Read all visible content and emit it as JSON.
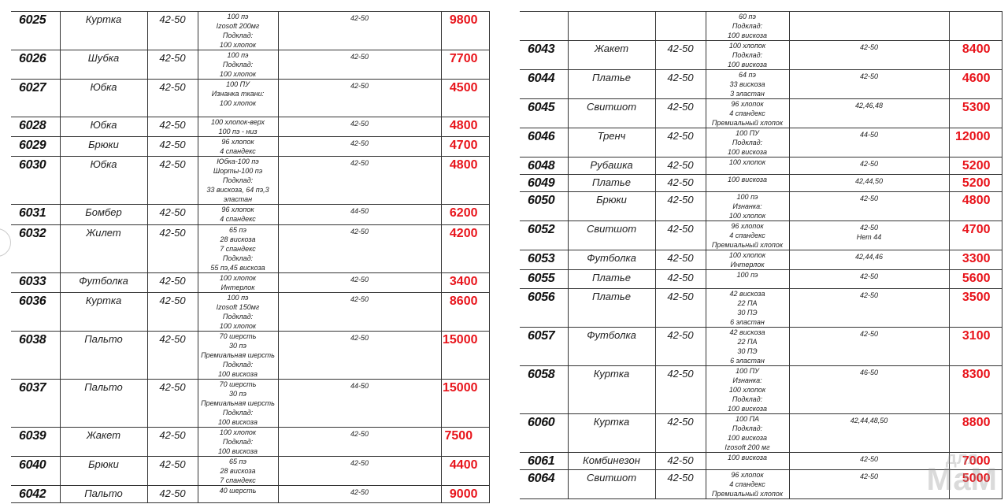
{
  "colors": {
    "price": "#e8141b",
    "border": "#333333"
  },
  "left_table": [
    {
      "article": "6025",
      "name": "Куртка",
      "size": "42-50",
      "composition": [
        "100 пэ",
        "Izosoft 200мг",
        "Подклад:",
        "100  хлопок"
      ],
      "sizes": [
        "42-50"
      ],
      "price": "9800"
    },
    {
      "article": "6026",
      "name": "Шубка",
      "size": "42-50",
      "composition": [
        "100 пэ",
        "Подклад:",
        "100  хлопок"
      ],
      "sizes": [
        "42-50"
      ],
      "price": "7700"
    },
    {
      "article": "6027",
      "name": "Юбка",
      "size": "42-50",
      "composition": [
        "100 ПУ",
        "Изнанка ткани:",
        "100 хлопок"
      ],
      "sizes": [
        "42-50"
      ],
      "price": "4500"
    },
    {
      "article": "6028",
      "name": "Юбка",
      "size": "42-50",
      "composition": [
        "100 хлопок-верх",
        "100 пэ - низ"
      ],
      "sizes": [
        "42-50"
      ],
      "price": "4800"
    },
    {
      "article": "6029",
      "name": "Брюки",
      "size": "42-50",
      "composition": [
        "96  хлопок",
        "4 спандекс"
      ],
      "sizes": [
        "42-50"
      ],
      "price": "4700"
    },
    {
      "article": "6030",
      "name": "Юбка",
      "size": "42-50",
      "composition": [
        "Юбка-100 пэ",
        "Шорты-100 пэ",
        "Подклад:",
        "33 вискоза, 64 пэ,3",
        "эластан"
      ],
      "sizes": [
        "42-50"
      ],
      "price": "4800"
    },
    {
      "article": "6031",
      "name": "Бомбер",
      "size": "42-50",
      "composition": [
        "96  хлопок",
        "4 спандекс"
      ],
      "sizes": [
        "44-50"
      ],
      "price": "6200"
    },
    {
      "article": "6032",
      "name": "Жилет",
      "size": "42-50",
      "composition": [
        "65  пэ",
        "28  вискоза",
        "7 спандекс",
        "Подклад:",
        "55 пэ,45 вискоза"
      ],
      "sizes": [
        "42-50"
      ],
      "price": "4200"
    },
    {
      "article": "6033",
      "name": "Футболка",
      "size": "42-50",
      "composition": [
        "100 хлопок",
        "Интерлок"
      ],
      "sizes": [
        "42-50"
      ],
      "price": "3400"
    },
    {
      "article": "6036",
      "name": "Куртка",
      "size": "42-50",
      "composition": [
        "100 пэ",
        "Izosoft 150мг",
        "Подклад:",
        "100  хлопок"
      ],
      "sizes": [
        "42-50"
      ],
      "price": "8600"
    },
    {
      "article": "6038",
      "name": "Пальто",
      "size": "42-50",
      "composition": [
        "70   шерсть",
        "30 пэ",
        "Премиальная шерсть",
        "Подклад:",
        "100 вискоза"
      ],
      "sizes": [
        "42-50"
      ],
      "price": "15000"
    },
    {
      "article": "6037",
      "name": "Пальто",
      "size": "42-50",
      "composition": [
        "70   шерсть",
        "30 пэ",
        "Премиальная шерсть",
        "Подклад:",
        "100 вискоза"
      ],
      "sizes": [
        "44-50"
      ],
      "price": "15000"
    },
    {
      "article": "6039",
      "name": "Жакет",
      "size": "42-50",
      "composition": [
        "100 хлопок",
        "Подклад:",
        "100 вискоза"
      ],
      "sizes": [
        "42-50"
      ],
      "price": "7500"
    },
    {
      "article": "6040",
      "name": "Брюки",
      "size": "42-50",
      "composition": [
        "65  пэ",
        "28  вискоза",
        "7 спандекс"
      ],
      "sizes": [
        "42-50"
      ],
      "price": "4400"
    },
    {
      "article": "6042",
      "name": "Пальто",
      "size": "42-50",
      "composition": [
        "40  шерсть"
      ],
      "sizes": [
        "42-50"
      ],
      "price": "9000"
    }
  ],
  "right_table": [
    {
      "article": "",
      "name": "",
      "size": "",
      "composition": [
        "60 пэ",
        "Подклад:",
        "100 вискоза"
      ],
      "sizes": [],
      "price": ""
    },
    {
      "article": "6043",
      "name": "Жакет",
      "size": "42-50",
      "composition": [
        "100 хлопок",
        "Подклад:",
        "100 вискоза"
      ],
      "sizes": [
        "42-50"
      ],
      "price": "8400"
    },
    {
      "article": "6044",
      "name": "Платье",
      "size": "42-50",
      "composition": [
        "64 пэ",
        "33 вискоза",
        "3  эластан"
      ],
      "sizes": [
        "42-50"
      ],
      "price": "4600"
    },
    {
      "article": "6045",
      "name": "Свитшот",
      "size": "42-50",
      "composition": [
        "96 хлопок",
        "4 спандекс",
        "Премиальный хлопок"
      ],
      "sizes": [
        "42,46,48"
      ],
      "price": "5300"
    },
    {
      "article": "6046",
      "name": "Тренч",
      "size": "42-50",
      "composition": [
        "100   ПУ",
        "Подклад:",
        "100 вискоза"
      ],
      "sizes": [
        "44-50"
      ],
      "price": "12000"
    },
    {
      "article": "6048",
      "name": "Рубашка",
      "size": "42-50",
      "composition": [
        "100    хлопок"
      ],
      "sizes": [
        "42-50"
      ],
      "price": "5200"
    },
    {
      "article": "6049",
      "name": "Платье",
      "size": "42-50",
      "composition": [
        "100 вискоза"
      ],
      "sizes": [
        "42,44,50"
      ],
      "price": "5200"
    },
    {
      "article": "6050",
      "name": "Брюки",
      "size": "42-50",
      "composition": [
        "100 пэ",
        "Изнанка:",
        "100 хлопок"
      ],
      "sizes": [
        "42-50"
      ],
      "price": "4800"
    },
    {
      "article": "6052",
      "name": "Свитшот",
      "size": "42-50",
      "composition": [
        "96 хлопок",
        "4 спандекс",
        "Премиальный хлопок"
      ],
      "sizes": [
        "42-50",
        "Нет 44"
      ],
      "price": "4700"
    },
    {
      "article": "6053",
      "name": "Футболка",
      "size": "42-50",
      "composition": [
        "100 хлопок",
        "Интерлок"
      ],
      "sizes": [
        "42,44,46"
      ],
      "price": "3300"
    },
    {
      "article": "6055",
      "name": "Платье",
      "size": "42-50",
      "composition": [
        "100 пэ"
      ],
      "sizes": [
        "42-50"
      ],
      "price": "5600"
    },
    {
      "article": "6056",
      "name": "Платье",
      "size": "42-50",
      "composition": [
        "42 вискоза",
        "22 ПА",
        "30  ПЭ",
        "6  эластан"
      ],
      "sizes": [
        "42-50"
      ],
      "price": "3500"
    },
    {
      "article": "6057",
      "name": "Футболка",
      "size": "42-50",
      "composition": [
        "42 вискоза",
        "22 ПА",
        "30  ПЭ",
        "6  эластан"
      ],
      "sizes": [
        "42-50"
      ],
      "price": "3100"
    },
    {
      "article": "6058",
      "name": "Куртка",
      "size": "42-50",
      "composition": [
        "100 ПУ",
        "Изнанка:",
        "100   хлопок",
        "Подклад:",
        "100   вискоза"
      ],
      "sizes": [
        "46-50"
      ],
      "price": "8300"
    },
    {
      "article": "6060",
      "name": "Куртка",
      "size": "42-50",
      "composition": [
        "100  ПА",
        "Подклад:",
        "100   вискоза",
        "Izosoft 200 мг"
      ],
      "sizes": [
        "42,44,48,50"
      ],
      "price": "8800"
    },
    {
      "article": "6061",
      "name": "Комбинезон",
      "size": "42-50",
      "composition": [
        "100   вискоза"
      ],
      "sizes": [
        "42-50"
      ],
      "price": "7000"
    },
    {
      "article": "6064",
      "name": "Свитшот",
      "size": "42-50",
      "composition": [
        "96 хлопок",
        "4 спандекс",
        "Премиальный хлопок"
      ],
      "sizes": [
        "42-50"
      ],
      "price": "5000"
    }
  ],
  "watermark": {
    "line1": "для",
    "line2": "МаМ"
  }
}
